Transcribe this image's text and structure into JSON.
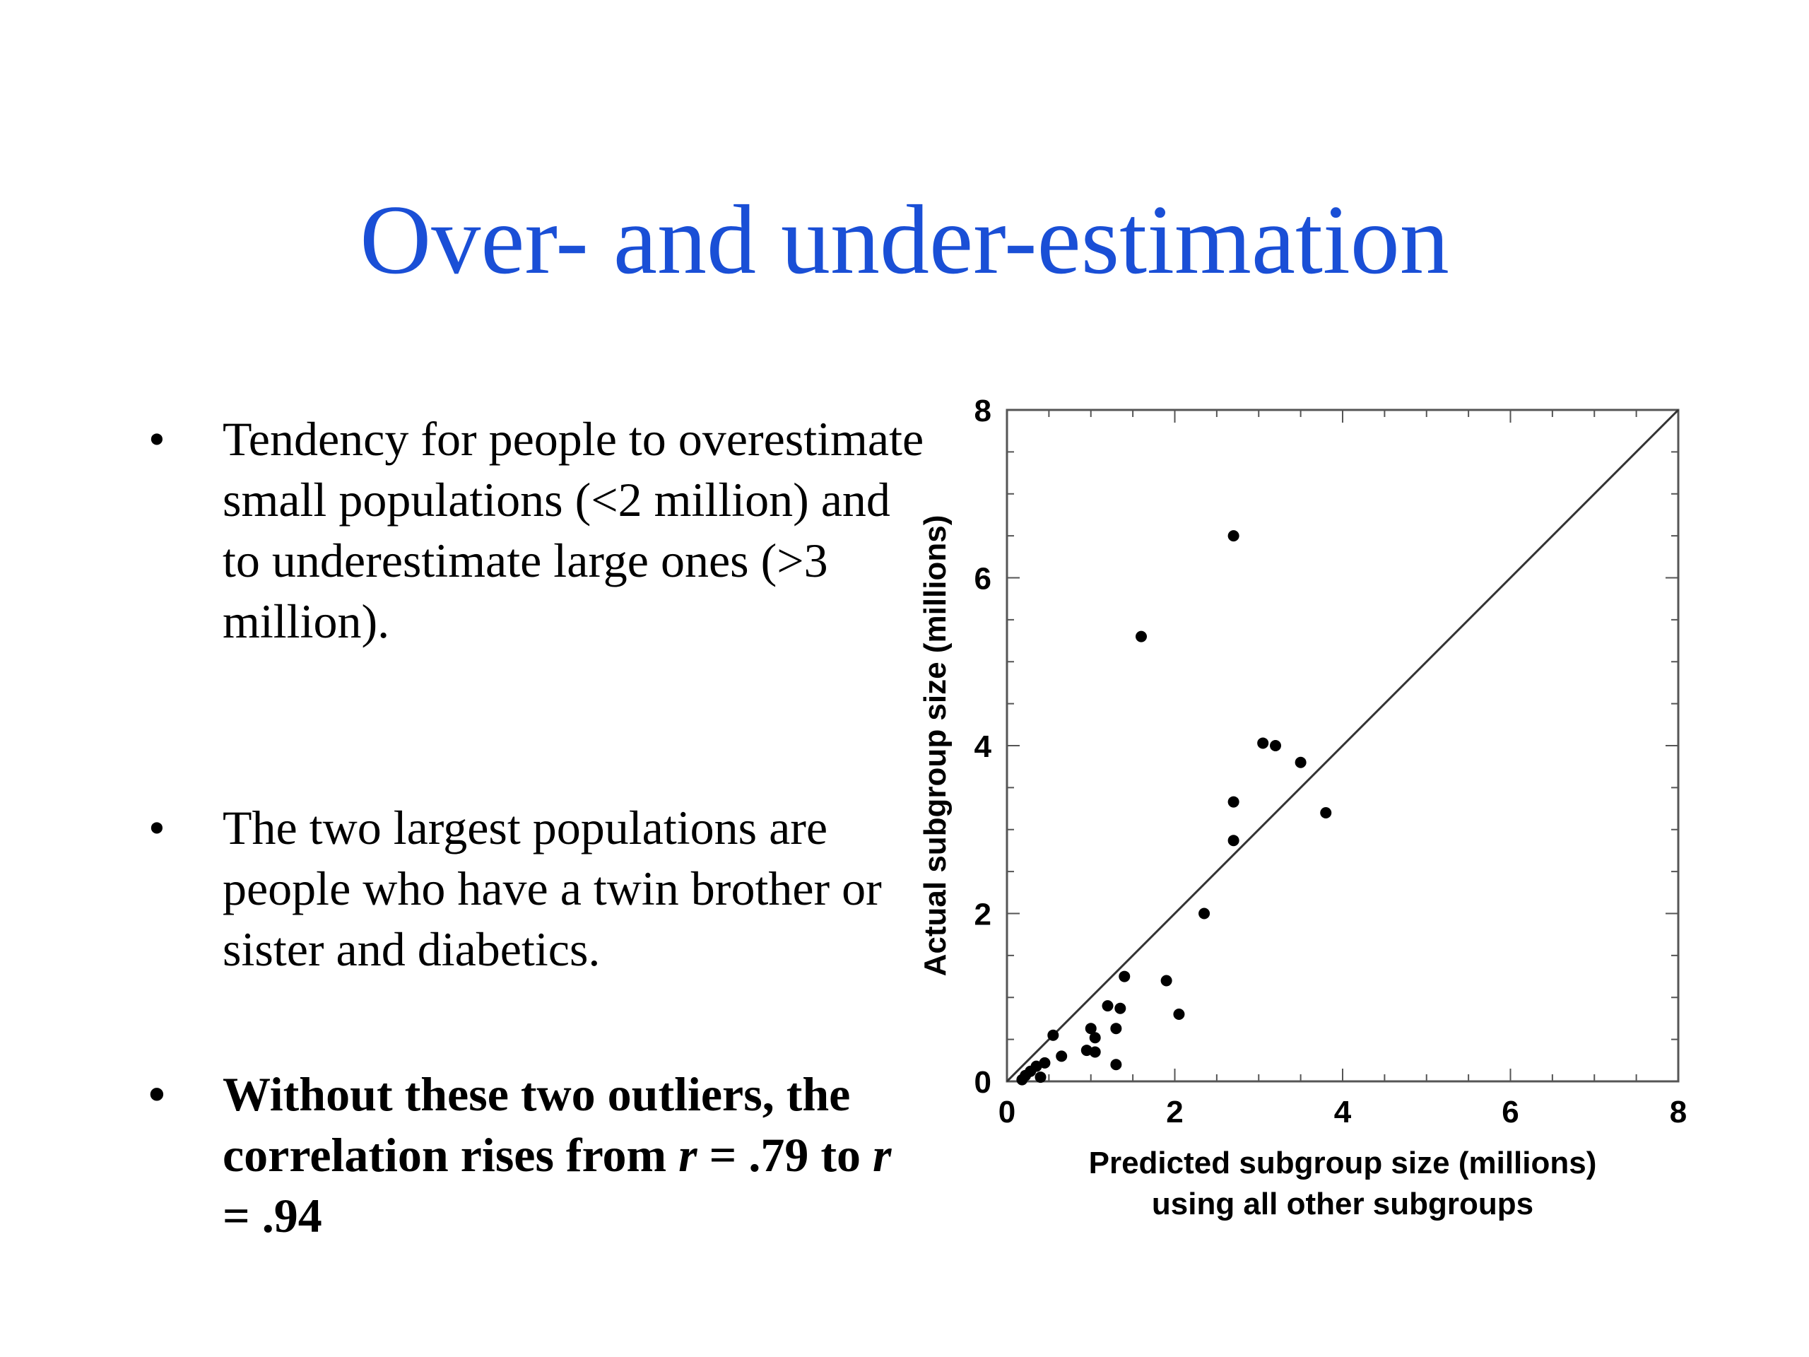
{
  "slide": {
    "title": "Over- and under-estimation",
    "bullets": [
      {
        "marker": "•",
        "text": "Tendency for people to overestimate small populations (<2 million) and to underestimate large ones (>3 million)."
      },
      {
        "marker": "•",
        "text": "The two largest populations are people who have a twin brother or sister and diabetics."
      },
      {
        "marker": "•",
        "parts": [
          "Without these two outliers, the correlation rises from ",
          "r",
          " = .79 to ",
          "r",
          " = .94"
        ]
      }
    ]
  },
  "chart_data": {
    "type": "scatter",
    "xlabel": [
      "Predicted subgroup size (millions)",
      "using all other subgroups"
    ],
    "ylabel": "Actual subgroup size (millions)",
    "xlim": [
      0,
      8
    ],
    "ylim": [
      0,
      8
    ],
    "xticks": [
      0,
      2,
      4,
      6,
      8
    ],
    "yticks": [
      0,
      2,
      4,
      6,
      8
    ],
    "reference_line": {
      "from": [
        0,
        0
      ],
      "to": [
        8,
        8
      ]
    },
    "grid": false,
    "points": [
      {
        "x": 2.7,
        "y": 6.5
      },
      {
        "x": 1.6,
        "y": 5.3
      },
      {
        "x": 3.05,
        "y": 4.03
      },
      {
        "x": 3.2,
        "y": 4.0
      },
      {
        "x": 3.5,
        "y": 3.8
      },
      {
        "x": 2.7,
        "y": 3.33
      },
      {
        "x": 3.8,
        "y": 3.2
      },
      {
        "x": 2.7,
        "y": 2.87
      },
      {
        "x": 2.35,
        "y": 2.0
      },
      {
        "x": 1.4,
        "y": 1.25
      },
      {
        "x": 1.9,
        "y": 1.2
      },
      {
        "x": 1.2,
        "y": 0.9
      },
      {
        "x": 1.35,
        "y": 0.87
      },
      {
        "x": 2.05,
        "y": 0.8
      },
      {
        "x": 1.0,
        "y": 0.63
      },
      {
        "x": 1.3,
        "y": 0.63
      },
      {
        "x": 1.05,
        "y": 0.52
      },
      {
        "x": 0.55,
        "y": 0.55
      },
      {
        "x": 0.95,
        "y": 0.37
      },
      {
        "x": 1.05,
        "y": 0.35
      },
      {
        "x": 0.65,
        "y": 0.3
      },
      {
        "x": 1.3,
        "y": 0.2
      },
      {
        "x": 0.45,
        "y": 0.22
      },
      {
        "x": 0.35,
        "y": 0.18
      },
      {
        "x": 0.28,
        "y": 0.12
      },
      {
        "x": 0.22,
        "y": 0.07
      },
      {
        "x": 0.4,
        "y": 0.05
      },
      {
        "x": 0.18,
        "y": 0.02
      }
    ],
    "marker_color": "#000000",
    "line_color": "#333333"
  }
}
